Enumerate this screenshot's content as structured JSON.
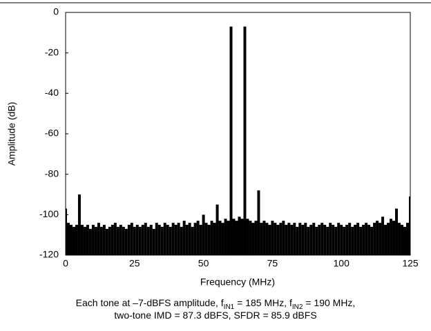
{
  "chart_data": {
    "type": "stem",
    "x_label": "Frequency (MHz)",
    "y_label": "Amplitude (dB)",
    "caption": [
      [
        "Each tone at –7-dBFS amplitude, f",
        "IN1",
        " = 185 MHz, f",
        "IN2",
        " = 190 MHz,"
      ],
      [
        "two-tone IMD = 87.3 dBFS, SFDR = 85.9 dBFS"
      ]
    ],
    "xlim": [
      0,
      125
    ],
    "xticks": [
      0,
      25,
      50,
      75,
      100,
      125
    ],
    "ylim": [
      -120,
      0
    ],
    "yticks": [
      0,
      -20,
      -40,
      -60,
      -80,
      -100,
      -120
    ],
    "color": "#000000",
    "x": [
      0,
      1,
      2,
      3,
      4,
      5,
      6,
      7,
      8,
      9,
      10,
      11,
      12,
      13,
      14,
      15,
      16,
      17,
      18,
      19,
      20,
      21,
      22,
      23,
      24,
      25,
      26,
      27,
      28,
      29,
      30,
      31,
      32,
      33,
      34,
      35,
      36,
      37,
      38,
      39,
      40,
      41,
      42,
      43,
      44,
      45,
      46,
      47,
      48,
      49,
      50,
      51,
      52,
      53,
      54,
      55,
      56,
      57,
      58,
      59,
      60,
      61,
      62,
      63,
      64,
      65,
      66,
      67,
      68,
      69,
      70,
      71,
      72,
      73,
      74,
      75,
      76,
      77,
      78,
      79,
      80,
      81,
      82,
      83,
      84,
      85,
      86,
      87,
      88,
      89,
      90,
      91,
      92,
      93,
      94,
      95,
      96,
      97,
      98,
      99,
      100,
      101,
      102,
      103,
      104,
      105,
      106,
      107,
      108,
      109,
      110,
      111,
      112,
      113,
      114,
      115,
      116,
      117,
      118,
      119,
      120,
      121,
      122,
      123,
      124,
      125
    ],
    "values": [
      -97,
      -104,
      -105,
      -106,
      -105,
      -90,
      -105,
      -106,
      -105,
      -107,
      -105,
      -106,
      -104,
      -106,
      -105,
      -107,
      -106,
      -105,
      -104,
      -106,
      -105,
      -106,
      -107,
      -105,
      -104,
      -106,
      -105,
      -106,
      -105,
      -104,
      -106,
      -105,
      -107,
      -104,
      -105,
      -106,
      -104,
      -105,
      -106,
      -104,
      -105,
      -104,
      -106,
      -103,
      -105,
      -104,
      -106,
      -104,
      -103,
      -105,
      -100,
      -104,
      -105,
      -103,
      -104,
      -95,
      -103,
      -104,
      -102,
      -103,
      -7,
      -102,
      -103,
      -101,
      -102,
      -7,
      -102,
      -103,
      -104,
      -103,
      -88,
      -104,
      -103,
      -104,
      -105,
      -103,
      -104,
      -105,
      -104,
      -103,
      -105,
      -104,
      -105,
      -104,
      -106,
      -104,
      -105,
      -104,
      -106,
      -105,
      -104,
      -106,
      -105,
      -104,
      -105,
      -106,
      -104,
      -105,
      -106,
      -104,
      -105,
      -106,
      -105,
      -104,
      -106,
      -105,
      -104,
      -106,
      -105,
      -104,
      -105,
      -106,
      -104,
      -103,
      -104,
      -101,
      -105,
      -104,
      -102,
      -103,
      -97,
      -104,
      -105,
      -106,
      -104,
      -91
    ]
  }
}
